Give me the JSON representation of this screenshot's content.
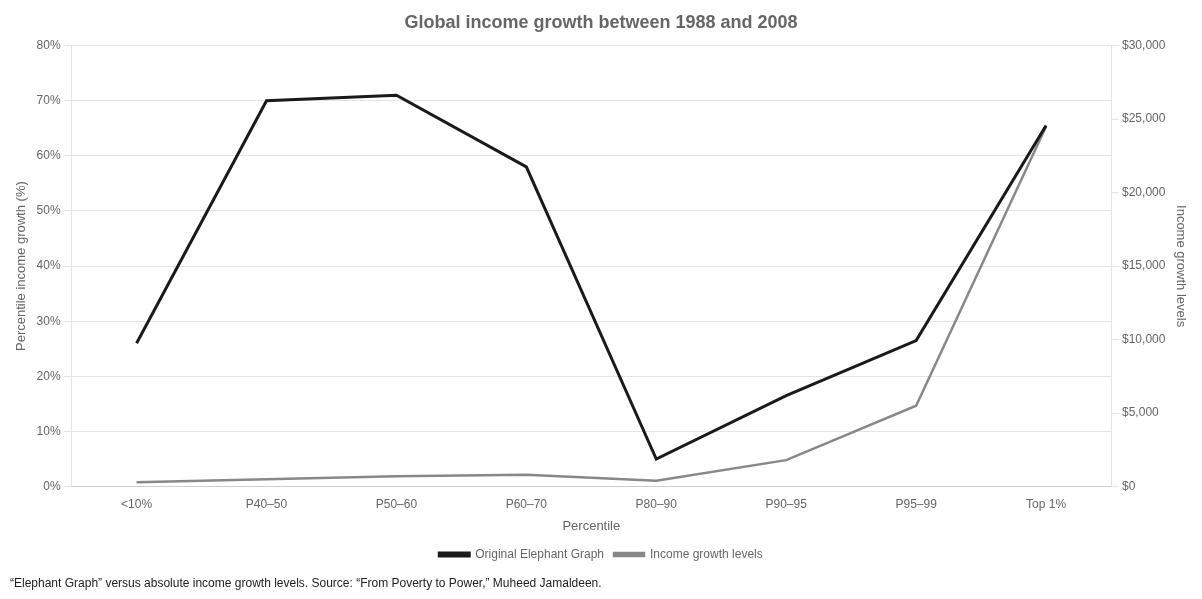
{
  "chart_data": {
    "type": "line",
    "title": "Global income growth between 1988 and 2008",
    "xlabel": "Percentile",
    "ylabel": "Percentile income growth (%)",
    "y2label": "Income growth levels",
    "footnote": "“Elephant Graph” versus absolute income growth levels. Source: “From Poverty to Power,” Muheed Jamaldeen.",
    "categories": [
      "<10%",
      "P40–50",
      "P50–60",
      "P60–70",
      "P80–90",
      "P90–95",
      "P95–99",
      "Top 1%"
    ],
    "series": [
      {
        "name": "Original Elephant Graph",
        "color": "#1a1a1a",
        "values": [
          0.26,
          0.7,
          0.71,
          0.58,
          0.05,
          0.165,
          0.265,
          0.655
        ]
      },
      {
        "name": "Income growth levels",
        "color": "#888888",
        "axis": "y2",
        "values": [
          300,
          500,
          700,
          800,
          400,
          1800,
          5500,
          24500
        ]
      }
    ],
    "ylim": [
      0,
      0.8
    ],
    "yticks": [
      {
        "value": 0,
        "label": "0%"
      },
      {
        "value": 0.1,
        "label": "10%"
      },
      {
        "value": 0.2,
        "label": "20%"
      },
      {
        "value": 0.3,
        "label": "30%"
      },
      {
        "value": 0.4,
        "label": "40%"
      },
      {
        "value": 0.5,
        "label": "50%"
      },
      {
        "value": 0.6,
        "label": "60%"
      },
      {
        "value": 0.7,
        "label": "70%"
      },
      {
        "value": 0.8,
        "label": "80%"
      }
    ],
    "y2lim": [
      0,
      30000
    ],
    "y2ticks": [
      {
        "value": 0,
        "label": "$0"
      },
      {
        "value": 5000,
        "label": "$5,000"
      },
      {
        "value": 10000,
        "label": "$10,000"
      },
      {
        "value": 15000,
        "label": "$15,000"
      },
      {
        "value": 20000,
        "label": "$20,000"
      },
      {
        "value": 25000,
        "label": "$25,000"
      },
      {
        "value": 30000,
        "label": "$30,000"
      }
    ],
    "grid": true,
    "legend": "bottom"
  }
}
